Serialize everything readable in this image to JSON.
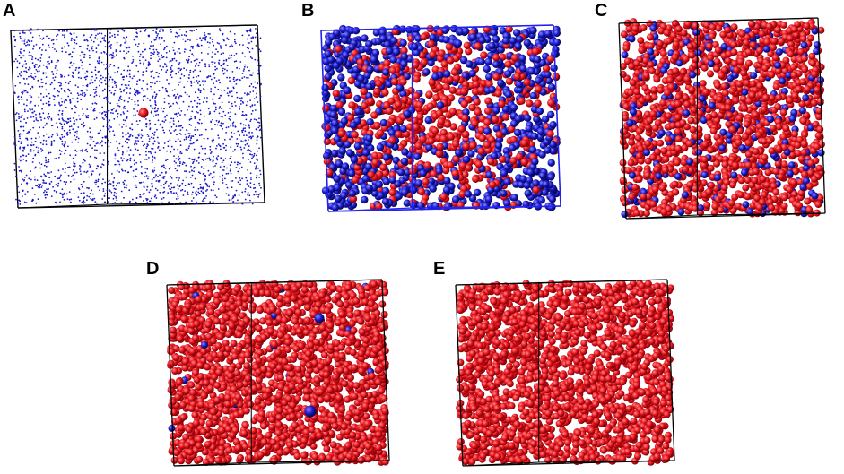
{
  "figure": {
    "panels": [
      {
        "label": "A",
        "box_color": "#000000",
        "red_fraction": 0.0005,
        "sphere": "point"
      },
      {
        "label": "B",
        "box_color": "#2222ee",
        "red_fraction": 0.5,
        "sphere": "medium"
      },
      {
        "label": "C",
        "box_color": "#000000",
        "red_fraction": 0.85,
        "sphere": "small"
      },
      {
        "label": "D",
        "box_color": "#000000",
        "red_fraction": 0.995,
        "sphere": "small"
      },
      {
        "label": "E",
        "box_color": "#000000",
        "red_fraction": 1.0,
        "sphere": "small"
      }
    ],
    "colors": {
      "red_particle": "#e8141c",
      "blue_particle": "#1a1acc"
    }
  }
}
